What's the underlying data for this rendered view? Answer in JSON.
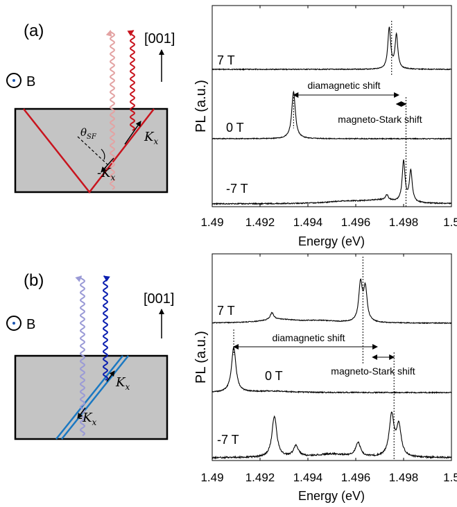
{
  "panel_a": {
    "label": "(a)",
    "direction": "[001]",
    "field": "B",
    "angle": "θ",
    "angle_sub": "SF",
    "kx_pos": "K",
    "kx_neg": "-K",
    "kx_sub": "x",
    "line_color": "#c8141e",
    "emit_dark": "#c8141e",
    "emit_light": "#e3a3a3"
  },
  "panel_b": {
    "label": "(b)",
    "direction": "[001]",
    "field": "B",
    "kx_pos": "K",
    "kx_neg": "-K",
    "kx_sub": "x",
    "line_color": "#1a78c2",
    "emit_dark": "#0b1fb0",
    "emit_light": "#9a9ad6"
  },
  "chart_data": [
    {
      "type": "line",
      "xlabel": "Energy (eV)",
      "ylabel": "PL (a.u.)",
      "xlim": [
        1.49,
        1.5
      ],
      "xticks": [
        "1.49",
        "1.492",
        "1.494",
        "1.496",
        "1.498",
        "1.5"
      ],
      "series": [
        {
          "name": "7 T",
          "peaks": [
            [
              1.4974,
              0.9
            ],
            [
              1.4977,
              0.75
            ]
          ]
        },
        {
          "name": "0 T",
          "peaks": [
            [
              1.4934,
              1.0
            ]
          ]
        },
        {
          "name": "-7 T",
          "peaks": [
            [
              1.4973,
              0.12
            ],
            [
              1.498,
              0.9
            ],
            [
              1.4983,
              0.7
            ]
          ]
        }
      ],
      "annotations": {
        "diamagnetic": "diamagnetic shift",
        "stark": "magneto-Stark shift",
        "dia_from": 1.4934,
        "dia_to": 1.4978,
        "stark_from": 1.4977,
        "stark_to": 1.4981,
        "vline_7T": 1.4975,
        "vline_m7T": 1.4981
      }
    },
    {
      "type": "line",
      "xlabel": "Energy (eV)",
      "ylabel": "PL (a.u.)",
      "xlim": [
        1.49,
        1.5
      ],
      "xticks": [
        "1.49",
        "1.492",
        "1.494",
        "1.496",
        "1.498",
        "1.5"
      ],
      "series": [
        {
          "name": "7 T",
          "peaks": [
            [
              1.4925,
              0.15
            ],
            [
              1.4962,
              0.8
            ],
            [
              1.4964,
              0.7
            ]
          ]
        },
        {
          "name": "0 T",
          "peaks": [
            [
              1.4909,
              1.0
            ]
          ]
        },
        {
          "name": "-7 T",
          "peaks": [
            [
              1.4926,
              0.9
            ],
            [
              1.4935,
              0.25
            ],
            [
              1.4961,
              0.3
            ],
            [
              1.4975,
              0.9
            ],
            [
              1.4978,
              0.65
            ]
          ]
        }
      ],
      "annotations": {
        "diamagnetic": "diamagnetic shift",
        "stark": "magneto-Stark shift",
        "dia_from": 1.4909,
        "dia_to": 1.4969,
        "stark_from": 1.4967,
        "stark_to": 1.4976,
        "vline_7T": 1.4963,
        "vline_m7T": 1.4976
      }
    }
  ]
}
